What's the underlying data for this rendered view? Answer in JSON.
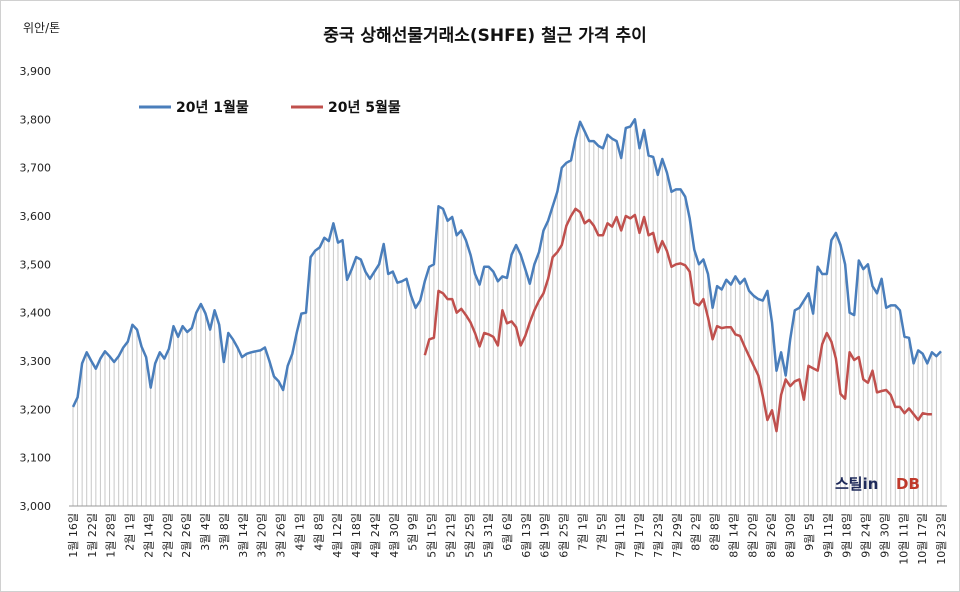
{
  "chart_data": {
    "type": "line",
    "title": "중국 상해선물거래소(SHFE) 철근 가격 추이",
    "ylabel": "위안/톤",
    "xlabel": "",
    "ylim": [
      3000,
      3900
    ],
    "yticks": [
      "3,000",
      "3,100",
      "3,200",
      "3,300",
      "3,400",
      "3,500",
      "3,600",
      "3,700",
      "3,800",
      "3,900"
    ],
    "grid": "vertical lines at each data point",
    "legend_position": "top-left",
    "x_labels": [
      "1월 16일",
      "1월 22일",
      "1월 28일",
      "2월 1일",
      "2월 14일",
      "2월 20일",
      "2월 26일",
      "3월 4일",
      "3월 8일",
      "3월 14일",
      "3월 20일",
      "3월 26일",
      "4월 1일",
      "4월 8일",
      "4월 12일",
      "4월 18일",
      "4월 24일",
      "4월 30일",
      "5월 9일",
      "5월 15일",
      "5월 21일",
      "5월 25일",
      "5월 31일",
      "6월 6일",
      "6월 13일",
      "6월 19일",
      "6월 25일",
      "7월 1일",
      "7월 5일",
      "7월 11일",
      "7월 17일",
      "7월 23일",
      "7월 29일",
      "8월 2일",
      "8월 8일",
      "8월 14일",
      "8월 20일",
      "8월 26일",
      "8월 30일",
      "9월 5일",
      "9월 11일",
      "9월 18일",
      "9월 24일",
      "9월 30일",
      "10월 11일",
      "10월 17일",
      "10월 23일"
    ],
    "series": [
      {
        "name": "20년 1월물",
        "color": "#4a7ebb",
        "values": [
          3205,
          3225,
          3295,
          3318,
          3300,
          3284,
          3305,
          3320,
          3310,
          3298,
          3310,
          3328,
          3340,
          3375,
          3365,
          3330,
          3308,
          3245,
          3295,
          3318,
          3305,
          3325,
          3372,
          3350,
          3372,
          3360,
          3368,
          3400,
          3418,
          3398,
          3365,
          3405,
          3375,
          3298,
          3358,
          3345,
          3328,
          3308,
          3315,
          3318,
          3320,
          3322,
          3328,
          3300,
          3268,
          3258,
          3240,
          3290,
          3315,
          3360,
          3398,
          3400,
          3515,
          3528,
          3535,
          3555,
          3548,
          3585,
          3545,
          3550,
          3468,
          3490,
          3515,
          3510,
          3485,
          3470,
          3485,
          3500,
          3542,
          3480,
          3485,
          3462,
          3465,
          3470,
          3435,
          3410,
          3425,
          3465,
          3495,
          3500,
          3620,
          3615,
          3590,
          3598,
          3560,
          3570,
          3550,
          3520,
          3480,
          3458,
          3495,
          3495,
          3485,
          3465,
          3475,
          3472,
          3520,
          3540,
          3520,
          3490,
          3460,
          3500,
          3525,
          3570,
          3590,
          3620,
          3650,
          3700,
          3710,
          3715,
          3760,
          3795,
          3775,
          3755,
          3755,
          3745,
          3740,
          3768,
          3760,
          3755,
          3720,
          3782,
          3785,
          3800,
          3740,
          3778,
          3725,
          3722,
          3685,
          3718,
          3690,
          3650,
          3655,
          3655,
          3640,
          3595,
          3530,
          3500,
          3510,
          3480,
          3410,
          3455,
          3448,
          3468,
          3458,
          3475,
          3460,
          3470,
          3445,
          3435,
          3428,
          3425,
          3445,
          3380,
          3280,
          3318,
          3270,
          3345,
          3405,
          3410,
          3425,
          3440,
          3398,
          3495,
          3480,
          3480,
          3550,
          3565,
          3540,
          3500,
          3400,
          3395,
          3508,
          3490,
          3500,
          3455,
          3440,
          3470,
          3410,
          3415,
          3415,
          3405,
          3350,
          3348,
          3295,
          3322,
          3315,
          3295,
          3318,
          3310,
          3320
        ]
      },
      {
        "name": "20년 5월물",
        "color": "#c0504d",
        "values": [
          null,
          null,
          null,
          null,
          null,
          null,
          null,
          null,
          null,
          null,
          null,
          null,
          null,
          null,
          null,
          null,
          null,
          null,
          null,
          null,
          null,
          null,
          null,
          null,
          null,
          null,
          null,
          null,
          null,
          null,
          null,
          null,
          null,
          null,
          null,
          null,
          null,
          null,
          null,
          null,
          null,
          null,
          null,
          null,
          null,
          null,
          null,
          null,
          null,
          null,
          null,
          null,
          null,
          null,
          null,
          null,
          null,
          null,
          null,
          null,
          null,
          null,
          null,
          null,
          null,
          null,
          null,
          null,
          null,
          null,
          null,
          null,
          null,
          null,
          null,
          null,
          null,
          3312,
          3345,
          3348,
          3445,
          3440,
          3428,
          3428,
          3400,
          3408,
          3395,
          3380,
          3358,
          3330,
          3358,
          3355,
          3350,
          3332,
          3405,
          3378,
          3382,
          3370,
          3332,
          3352,
          3380,
          3405,
          3425,
          3440,
          3470,
          3515,
          3525,
          3540,
          3580,
          3600,
          3615,
          3608,
          3585,
          3592,
          3580,
          3560,
          3560,
          3585,
          3578,
          3598,
          3570,
          3600,
          3595,
          3602,
          3565,
          3598,
          3560,
          3565,
          3525,
          3548,
          3528,
          3495,
          3500,
          3502,
          3498,
          3485,
          3420,
          3415,
          3428,
          3390,
          3345,
          3372,
          3368,
          3370,
          3370,
          3355,
          3352,
          3330,
          3310,
          3290,
          3270,
          3228,
          3178,
          3198,
          3155,
          3230,
          3262,
          3248,
          3258,
          3262,
          3220,
          3290,
          3285,
          3280,
          3335,
          3358,
          3340,
          3305,
          3232,
          3222,
          3318,
          3302,
          3308,
          3262,
          3255,
          3280,
          3235,
          3238,
          3240,
          3230,
          3205,
          3205,
          3192,
          3202,
          3190,
          3178,
          3192,
          3190,
          3190
        ]
      }
    ]
  },
  "logo": {
    "text": "스틸in",
    "suffix": "DB"
  }
}
